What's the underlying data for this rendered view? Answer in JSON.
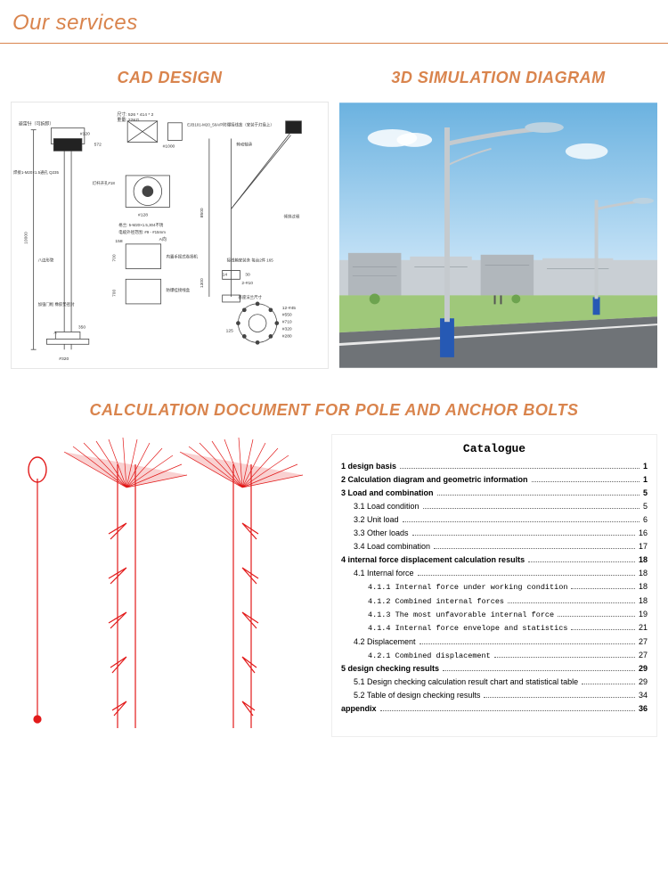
{
  "header": {
    "title": "Our services"
  },
  "sections": {
    "cad": {
      "title": "CAD DESIGN"
    },
    "sim": {
      "title": "3D SIMULATION DIAGRAM"
    },
    "calc": {
      "title": "CALCULATION DOCUMENT FOR POLE AND ANCHOR BOLTS"
    }
  },
  "colors": {
    "accent": "#d9844d",
    "sky_top": "#6bb2e0",
    "sky_bot": "#d7ecfb",
    "ground": "#9fc87a",
    "road": "#6f7377",
    "road_mark": "#e8e8e8",
    "building": "#c9cfd4",
    "building2": "#b1b7bc",
    "pole": "#c5cace",
    "pole_base": "#2659b4",
    "lamp": "#bcd2e0",
    "stress_red": "#e21a1a",
    "cad_line": "#444444"
  },
  "cad": {
    "labels": {
      "top_dim": "尺寸: 526 * 414 * 2",
      "weight": "重量: 22KG",
      "d120": "#120",
      "w572": "572",
      "w1000": "#1000",
      "ejb": "EJB101-M20_50A/P防爆接线盒（安装于灯盘上）",
      "side_dim": "焊接1-M20×1.5通孔 Q235",
      "d128": "#128",
      "m20": "格兰: 5-M20×1.5,304不锈",
      "cable": "电缆外径范围: #9 - #15mm",
      "a_arrow": "A向",
      "wind": "内置手摇式卷扬机",
      "box": "防爆挂接线盒",
      "rotate": "转动轴承",
      "tilt": "倾斜过程",
      "h8500": "8500",
      "h1300": "1300",
      "junction": "接线箱安装条 每台2件 165",
      "holes": "2-#10",
      "flange": "基座法兰尺寸",
      "f_spec": "12-#45",
      "d550": "#550",
      "d710": "#710",
      "d320": "#320",
      "d280": "#280",
      "b320": "#320",
      "h10000": "10000",
      "octagon": "八边形管",
      "door": "加强门框 橡胶垫密封",
      "h350": "350",
      "h700a": "700",
      "h700b": "700",
      "h158": "158",
      "opening": "灯杆开孔#18",
      "n14": "14",
      "n30": "30",
      "n125": "125",
      "arrow_a": "A",
      "avoid": "避雷针（可拆卸）"
    }
  },
  "catalogue": {
    "title": "Catalogue",
    "items": [
      {
        "label": "1 design basis",
        "page": "1",
        "bold": true,
        "indent": 0
      },
      {
        "label": "2 Calculation diagram and geometric information",
        "page": "1",
        "bold": true,
        "indent": 0
      },
      {
        "label": "3 Load and combination",
        "page": "5",
        "bold": true,
        "indent": 0
      },
      {
        "label": "3.1 Load condition",
        "page": "5",
        "bold": false,
        "indent": 1
      },
      {
        "label": "3.2 Unit load",
        "page": "6",
        "bold": false,
        "indent": 1
      },
      {
        "label": "3.3 Other loads",
        "page": "16",
        "bold": false,
        "indent": 1
      },
      {
        "label": "3.4 Load combination",
        "page": "17",
        "bold": false,
        "indent": 1
      },
      {
        "label": "4 internal force displacement calculation results",
        "page": "18",
        "bold": true,
        "indent": 0
      },
      {
        "label": "4.1 Internal force",
        "page": "18",
        "bold": false,
        "indent": 1
      },
      {
        "label": "4.1.1 Internal force under working condition",
        "page": "18",
        "bold": false,
        "indent": 2,
        "mono": true
      },
      {
        "label": "4.1.2 Combined internal forces",
        "page": "18",
        "bold": false,
        "indent": 2,
        "mono": true
      },
      {
        "label": "4.1.3 The most unfavorable internal force",
        "page": "19",
        "bold": false,
        "indent": 2,
        "mono": true
      },
      {
        "label": "4.1.4 Internal force envelope and statistics",
        "page": "21",
        "bold": false,
        "indent": 2,
        "mono": true
      },
      {
        "label": "4.2 Displacement",
        "page": "27",
        "bold": false,
        "indent": 1
      },
      {
        "label": "4.2.1 Combined displacement",
        "page": "27",
        "bold": false,
        "indent": 2,
        "mono": true
      },
      {
        "label": "5 design checking results",
        "page": "29",
        "bold": true,
        "indent": 0
      },
      {
        "label": "5.1 Design checking calculation result chart and statistical table",
        "page": "29",
        "bold": false,
        "indent": 1
      },
      {
        "label": "5.2 Table of design checking results",
        "page": "34",
        "bold": false,
        "indent": 1
      },
      {
        "label": "appendix",
        "page": "36",
        "bold": true,
        "indent": 0
      }
    ]
  }
}
